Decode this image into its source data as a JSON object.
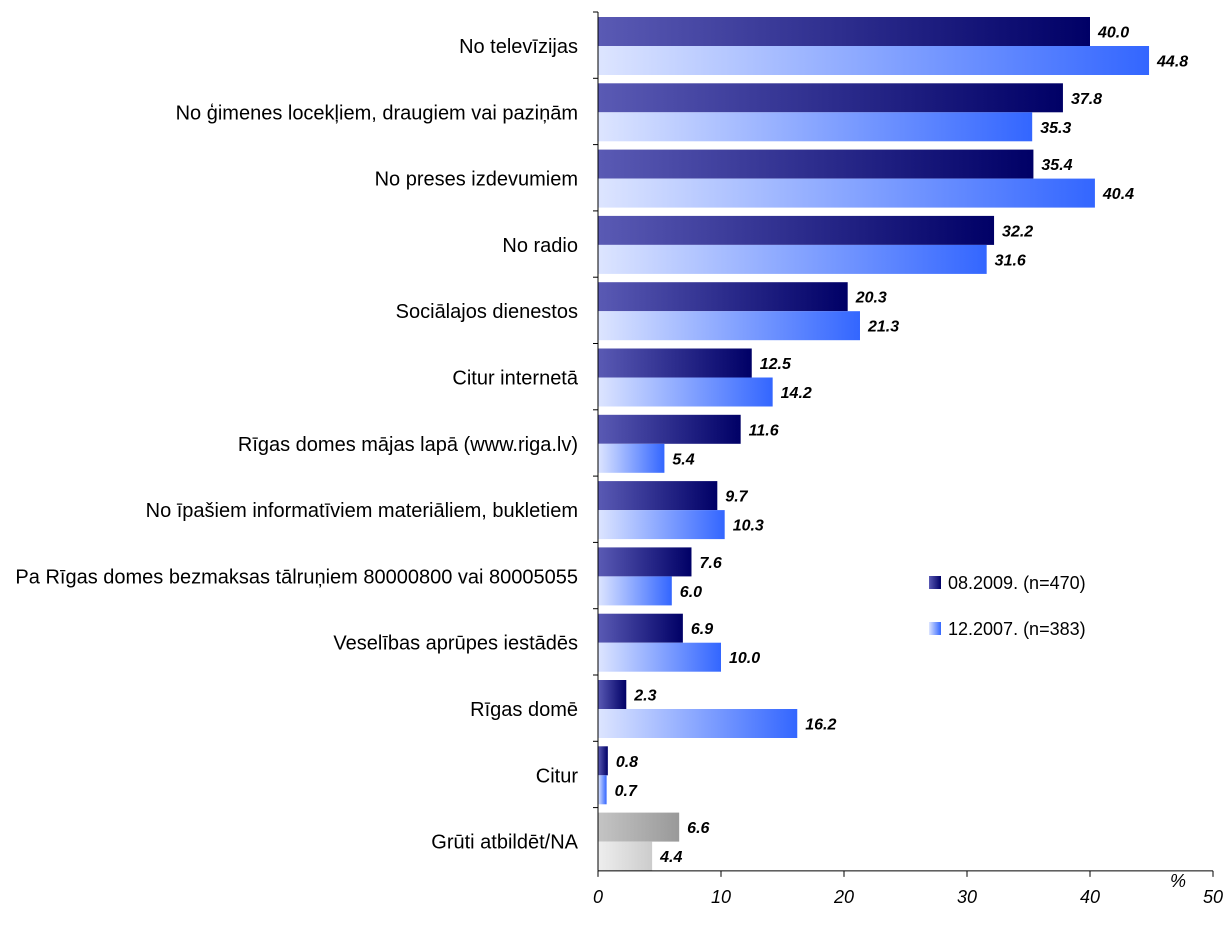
{
  "chart_data": {
    "type": "bar",
    "orientation": "horizontal",
    "categories": [
      "No televīzijas",
      "No ģimenes locekļiem, draugiem vai paziņām",
      "No preses izdevumiem",
      "No radio",
      "Sociālajos dienestos",
      "Citur internetā",
      "Rīgas domes mājas lapā (www.riga.lv)",
      "No īpašiem informatīviem materiāliem, bukletiem",
      "Pa Rīgas domes bezmaksas tālruņiem 80000800 vai 80005055",
      "Veselības aprūpes iestādēs",
      "Rīgas domē",
      "Citur",
      "Grūti atbildēt/NA"
    ],
    "series": [
      {
        "name": "08.2009. (n=470)",
        "values": [
          40.0,
          37.8,
          35.4,
          32.2,
          20.3,
          12.5,
          11.6,
          9.7,
          7.6,
          6.9,
          2.3,
          0.8,
          6.6
        ],
        "labels": [
          "40.0",
          "37.8",
          "35.4",
          "32.2",
          "20.3",
          "12.5",
          "11.6",
          "9.7",
          "7.6",
          "6.9",
          "2.3",
          "0.8",
          "6.6"
        ]
      },
      {
        "name": "12.2007. (n=383)",
        "values": [
          44.8,
          35.3,
          40.4,
          31.6,
          21.3,
          14.2,
          5.4,
          10.3,
          6.0,
          10.0,
          16.2,
          0.7,
          4.4
        ],
        "labels": [
          "44.8",
          "35.3",
          "40.4",
          "31.6",
          "21.3",
          "14.2",
          "5.4",
          "10.3",
          "6.0",
          "10.0",
          "16.2",
          "0.7",
          "4.4"
        ]
      }
    ],
    "x_ticks": [
      "0",
      "10",
      "20",
      "30",
      "40",
      "50"
    ],
    "xlim": [
      0,
      50
    ],
    "xlabel": "%",
    "legend_position": "right",
    "grid": false,
    "colors": {
      "series1_dark": "#000066",
      "series1_light": "#5a5ab4",
      "series2_dark": "#3366ff",
      "series2_light": "#dde5ff",
      "na_series1": "#999999",
      "na_series1_light": "#c4c4c4",
      "na_series2": "#cccccc",
      "na_series2_light": "#eeeeee"
    }
  }
}
